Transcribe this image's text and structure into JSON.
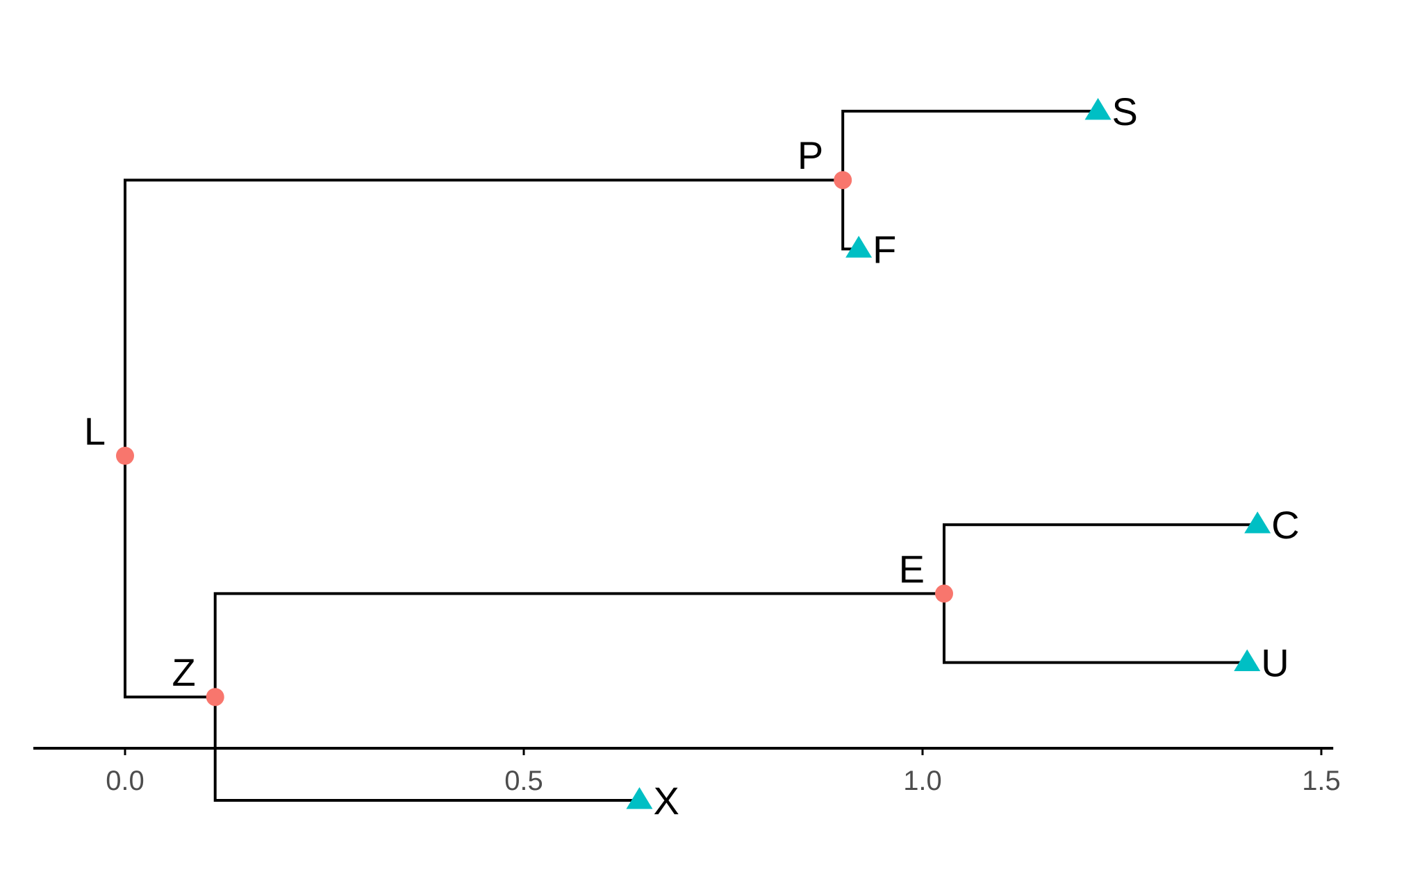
{
  "chart_data": {
    "type": "tree",
    "title": "",
    "xlabel": "",
    "ylabel": "",
    "xlim": [
      -0.115,
      1.515
    ],
    "x_ticks": [
      0.0,
      0.5,
      1.0,
      1.5
    ],
    "x_tick_labels": [
      "0.0",
      "0.5",
      "1.0",
      "1.5"
    ],
    "colors": {
      "branch": "#000000",
      "internal_node": "#F8766D",
      "tip": "#00BFC4"
    },
    "nodes": [
      {
        "id": "L",
        "label": "L",
        "parent": null,
        "x": 0.0,
        "y": 3.5,
        "kind": "internal"
      },
      {
        "id": "P",
        "label": "P",
        "parent": "L",
        "x": 0.9,
        "y": 5.5,
        "kind": "internal"
      },
      {
        "id": "S",
        "label": "S",
        "parent": "P",
        "x": 1.22,
        "y": 6,
        "kind": "tip"
      },
      {
        "id": "F",
        "label": "F",
        "parent": "P",
        "x": 0.92,
        "y": 5,
        "kind": "tip"
      },
      {
        "id": "Z",
        "label": "Z",
        "parent": "L",
        "x": 0.113,
        "y": 1.75,
        "kind": "internal"
      },
      {
        "id": "E",
        "label": "E",
        "parent": "Z",
        "x": 1.027,
        "y": 2.5,
        "kind": "internal"
      },
      {
        "id": "C",
        "label": "C",
        "parent": "E",
        "x": 1.42,
        "y": 3,
        "kind": "tip"
      },
      {
        "id": "U",
        "label": "U",
        "parent": "E",
        "x": 1.407,
        "y": 2,
        "kind": "tip"
      },
      {
        "id": "X",
        "label": "X",
        "parent": "Z",
        "x": 0.645,
        "y": 1,
        "kind": "tip"
      }
    ]
  }
}
